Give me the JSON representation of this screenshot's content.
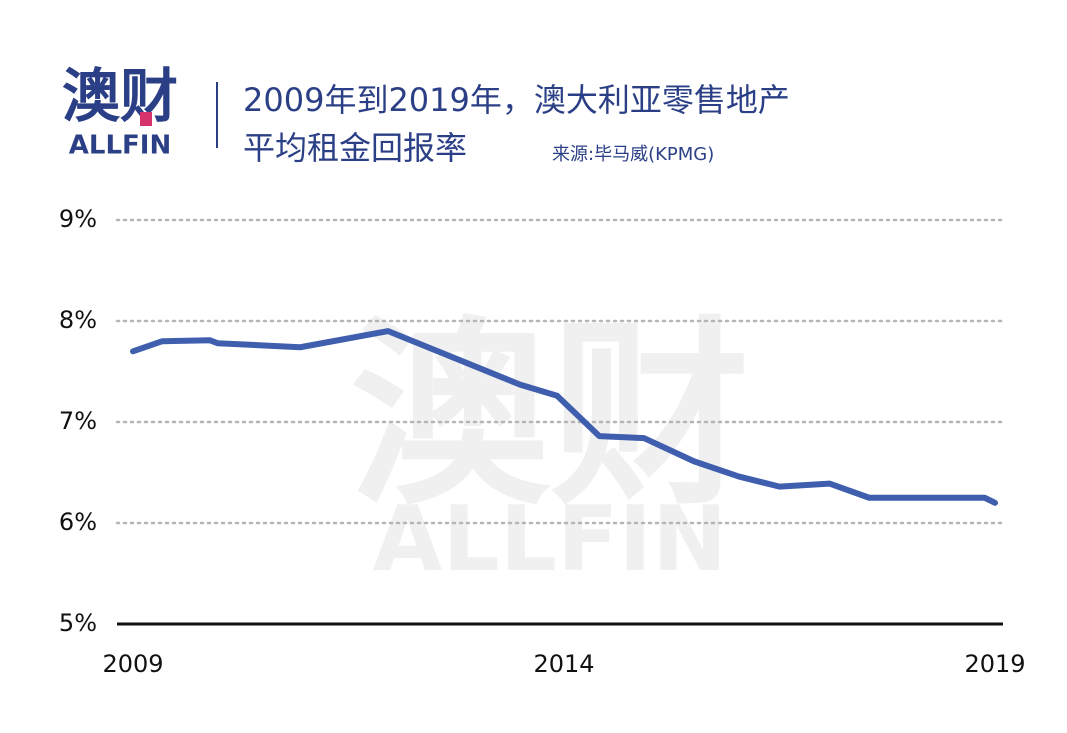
{
  "logo": {
    "name": "澳财",
    "sub": "ALLFIN"
  },
  "chart_data": {
    "type": "line",
    "title": [
      "2009年到2019年，澳大利亚零售地产",
      "平均租金回报率"
    ],
    "source": "来源:毕马威(KPMG)",
    "x": [
      2009.0,
      2009.34,
      2009.89,
      2009.98,
      2010.94,
      2011.96,
      2013.49,
      2013.92,
      2014.41,
      2014.93,
      2015.51,
      2016.03,
      2016.5,
      2017.08,
      2017.54,
      2018.88,
      2019.0
    ],
    "values": [
      7.7,
      7.8,
      7.81,
      7.78,
      7.74,
      7.9,
      7.37,
      7.26,
      6.86,
      6.84,
      6.61,
      6.46,
      6.36,
      6.39,
      6.25,
      6.25,
      6.2
    ],
    "color": "#3f5fae",
    "xlim": [
      2009,
      2019
    ],
    "xticks": [
      2009,
      2014,
      2019
    ],
    "ylim": [
      5,
      9
    ],
    "yticks": [
      {
        "value": 5,
        "label": "5%"
      },
      {
        "value": 6,
        "label": "6%"
      },
      {
        "value": 7,
        "label": "7%"
      },
      {
        "value": 8,
        "label": "8%"
      },
      {
        "value": 9,
        "label": "9%"
      }
    ],
    "grid": true
  }
}
